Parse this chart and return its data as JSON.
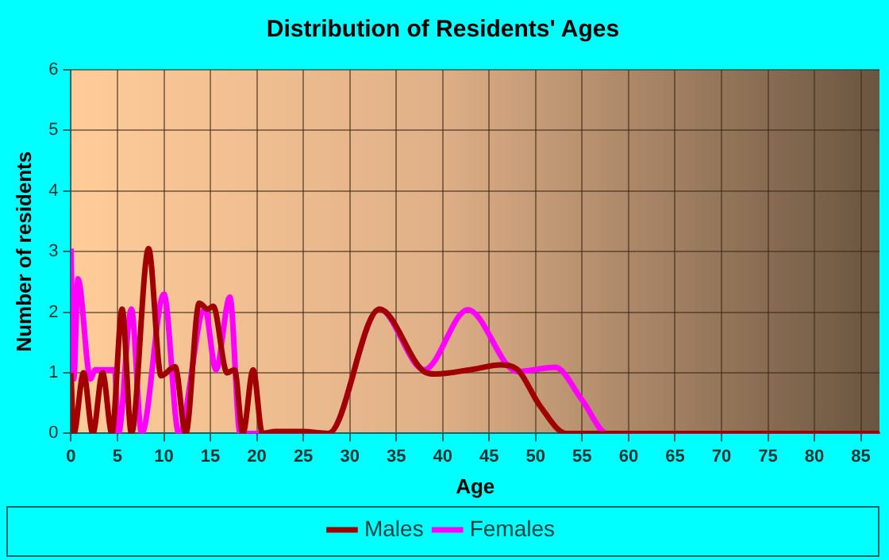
{
  "chart_data": {
    "type": "line",
    "title": "Distribution of Residents' Ages",
    "xlabel": "Age",
    "ylabel": "Number of residents",
    "xlim": [
      0,
      87
    ],
    "xticks": [
      0,
      5,
      10,
      15,
      20,
      25,
      30,
      35,
      40,
      45,
      50,
      55,
      60,
      65,
      70,
      75,
      80,
      85
    ],
    "ylim": [
      0,
      6
    ],
    "yticks": [
      0,
      1,
      2,
      3,
      4,
      5,
      6
    ],
    "grid": true,
    "legend": "bottom",
    "marker": "none",
    "line_style": "solid",
    "series": [
      {
        "name": "Males",
        "color": "#a00000",
        "x": [
          0,
          0.3,
          1.35,
          2.35,
          3.4,
          4.4,
          5.5,
          6.5,
          8.35,
          9.7,
          11.2,
          12.35,
          13.8,
          14.7,
          15.3,
          16.8,
          17.6,
          18.5,
          19.6,
          20.6,
          22,
          25,
          27.7,
          33.2,
          38,
          39.2,
          43.3,
          46.2,
          48,
          50.4,
          53.3,
          60,
          87
        ],
        "values": [
          1,
          0,
          1,
          0,
          1,
          0,
          2.05,
          0,
          3.05,
          0.95,
          1.1,
          0,
          2.15,
          2.05,
          2.1,
          1,
          1.05,
          0,
          1.05,
          0,
          0.03,
          0.03,
          0,
          2.05,
          1.02,
          0.98,
          1.06,
          1.13,
          1.06,
          0.47,
          0,
          0,
          0
        ]
      },
      {
        "name": "Females",
        "color": "#ff00ff",
        "x": [
          0,
          0.3,
          0.75,
          2.1,
          2.6,
          4.7,
          5.1,
          6.5,
          7.6,
          10,
          11.6,
          14.4,
          15.6,
          17.1,
          18.2,
          27.7,
          33.2,
          38,
          42.7,
          48,
          52.1,
          55,
          57.7,
          87
        ],
        "values": [
          3.05,
          0.9,
          2.55,
          0.9,
          1.05,
          1.05,
          0,
          2.05,
          0,
          2.3,
          0,
          2.05,
          1.05,
          2.25,
          0,
          0,
          2.05,
          1.05,
          2.04,
          1.02,
          1.09,
          0.55,
          0,
          0
        ]
      }
    ]
  }
}
